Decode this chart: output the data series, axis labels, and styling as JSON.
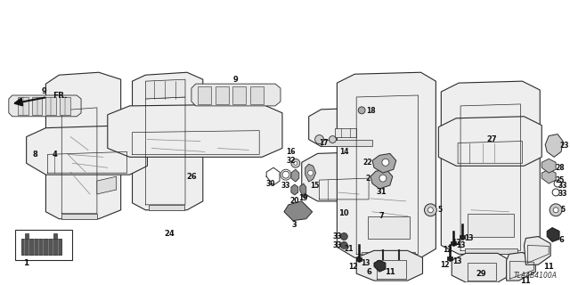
{
  "bg_color": "#ffffff",
  "diagram_code": "TLA4B4100A",
  "fig_width": 6.4,
  "fig_height": 3.2,
  "dpi": 100,
  "label_fontsize": 6.0,
  "diagram_fontsize": 5.5
}
